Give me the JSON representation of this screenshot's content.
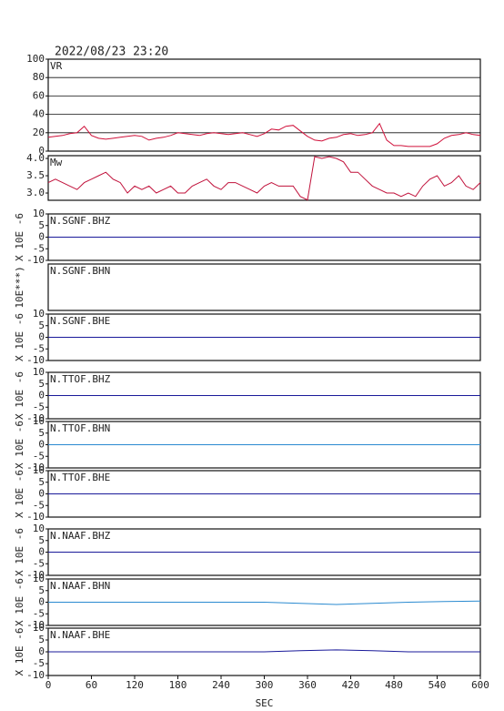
{
  "chart_data": [
    {
      "type": "line",
      "title": "2022/08/23 23:20",
      "label": "VR",
      "color": "#d0103a",
      "grid": true,
      "xlim": [
        0,
        600
      ],
      "ylim": [
        0,
        100
      ],
      "yticks": [
        0,
        20,
        40,
        60,
        80,
        100
      ],
      "x": [
        0,
        10,
        20,
        30,
        40,
        50,
        60,
        70,
        80,
        90,
        100,
        110,
        120,
        130,
        140,
        150,
        160,
        170,
        180,
        190,
        200,
        210,
        220,
        230,
        240,
        250,
        260,
        270,
        280,
        290,
        300,
        310,
        320,
        330,
        340,
        350,
        360,
        370,
        380,
        390,
        400,
        410,
        420,
        430,
        440,
        450,
        460,
        470,
        480,
        490,
        500,
        510,
        520,
        530,
        540,
        550,
        560,
        570,
        580,
        590,
        600
      ],
      "values": [
        15,
        16,
        17,
        19,
        20,
        27,
        17,
        14,
        13,
        14,
        15,
        16,
        17,
        16,
        12,
        14,
        15,
        17,
        20,
        19,
        18,
        17,
        19,
        20,
        19,
        18,
        19,
        20,
        18,
        16,
        19,
        24,
        23,
        27,
        28,
        22,
        16,
        12,
        11,
        14,
        15,
        18,
        19,
        17,
        18,
        20,
        30,
        12,
        6,
        6,
        5,
        5,
        5,
        5,
        8,
        14,
        17,
        18,
        20,
        18,
        17
      ]
    },
    {
      "type": "line",
      "label": "Mw",
      "color": "#c0103a",
      "xlim": [
        0,
        600
      ],
      "ylim": [
        2.79,
        4.08
      ],
      "yticks": [
        {
          "value": 3,
          "label": "3.0"
        },
        3.5,
        {
          "value": 4,
          "label": "4.0"
        }
      ],
      "x": [
        0,
        10,
        20,
        30,
        40,
        50,
        60,
        70,
        80,
        90,
        100,
        110,
        120,
        130,
        140,
        150,
        160,
        170,
        180,
        190,
        200,
        210,
        220,
        230,
        240,
        250,
        260,
        270,
        280,
        290,
        300,
        310,
        320,
        330,
        340,
        350,
        360,
        370,
        380,
        390,
        400,
        410,
        420,
        430,
        440,
        450,
        460,
        470,
        480,
        490,
        500,
        510,
        520,
        530,
        540,
        550,
        560,
        570,
        580,
        590,
        600
      ],
      "values": [
        3.3,
        3.4,
        3.3,
        3.2,
        3.1,
        3.3,
        3.4,
        3.5,
        3.6,
        3.4,
        3.3,
        3.0,
        3.2,
        3.1,
        3.2,
        3.0,
        3.1,
        3.2,
        3.0,
        3.0,
        3.2,
        3.3,
        3.4,
        3.2,
        3.1,
        3.3,
        3.3,
        3.2,
        3.1,
        3.0,
        3.2,
        3.3,
        3.2,
        3.2,
        3.2,
        2.9,
        2.8,
        4.05,
        4.0,
        4.05,
        4.0,
        3.9,
        3.6,
        3.6,
        3.4,
        3.2,
        3.1,
        3.0,
        3.0,
        2.9,
        3.0,
        2.9,
        3.2,
        3.4,
        3.5,
        3.2,
        3.3,
        3.5,
        3.2,
        3.1,
        3.3
      ]
    },
    {
      "type": "line",
      "label": "N.SGNF.BHZ",
      "ylabel": "X 10E -6",
      "color": "#1a1a9a",
      "xlim": [
        0,
        600
      ],
      "ylim": [
        -10,
        10
      ],
      "yticks": [
        -10,
        -5,
        0,
        5,
        10
      ],
      "x": [
        0,
        50,
        100,
        150,
        200,
        250,
        300,
        350,
        400,
        450,
        500,
        550,
        600
      ],
      "values": [
        0,
        0,
        0,
        0,
        0,
        0,
        0,
        0,
        0,
        0,
        0,
        0,
        0
      ]
    },
    {
      "type": "line",
      "label": "N.SGNF.BHN",
      "ylabel": "10E***)",
      "xlim": [
        0,
        600
      ]
    },
    {
      "type": "line",
      "label": "N.SGNF.BHE",
      "ylabel": "X 10E -6",
      "color": "#1a1a9a",
      "xlim": [
        0,
        600
      ],
      "ylim": [
        -10,
        10
      ],
      "yticks": [
        -10,
        -5,
        0,
        5,
        10
      ],
      "x": [
        0,
        50,
        100,
        150,
        200,
        250,
        300,
        350,
        400,
        450,
        500,
        550,
        600
      ],
      "values": [
        0,
        0,
        0,
        0,
        0,
        0,
        0,
        0,
        0,
        0,
        0,
        0,
        0
      ]
    },
    {
      "type": "line",
      "label": "N.TTOF.BHZ",
      "ylabel": "X 10E -6",
      "color": "#1a1a9a",
      "xlim": [
        0,
        600
      ],
      "ylim": [
        -10,
        10
      ],
      "yticks": [
        -10,
        -5,
        0,
        5,
        10
      ],
      "x": [
        0,
        50,
        100,
        150,
        200,
        250,
        300,
        350,
        400,
        450,
        500,
        550,
        600
      ],
      "values": [
        0,
        0,
        0,
        0,
        0,
        0,
        0,
        0,
        0,
        0,
        0,
        0,
        0
      ]
    },
    {
      "type": "line",
      "label": "N.TTOF.BHN",
      "ylabel": "X 10E -6",
      "color": "#2a8ad0",
      "xlim": [
        0,
        600
      ],
      "ylim": [
        -10,
        10
      ],
      "yticks": [
        -10,
        -5,
        0,
        5,
        10
      ],
      "x": [
        0,
        50,
        100,
        150,
        200,
        250,
        300,
        350,
        400,
        450,
        500,
        550,
        600
      ],
      "values": [
        0,
        0,
        0,
        0,
        0,
        0,
        0,
        0,
        0,
        0,
        0,
        0,
        0
      ]
    },
    {
      "type": "line",
      "label": "N.TTOF.BHE",
      "ylabel": "X 10E -6",
      "color": "#1a1a9a",
      "xlim": [
        0,
        600
      ],
      "ylim": [
        -10,
        10
      ],
      "yticks": [
        -10,
        -5,
        0,
        5,
        10
      ],
      "x": [
        0,
        50,
        100,
        150,
        200,
        250,
        300,
        350,
        400,
        450,
        500,
        550,
        600
      ],
      "values": [
        0,
        0,
        0,
        0,
        0,
        0,
        0,
        0,
        0,
        0,
        0,
        0,
        0
      ]
    },
    {
      "type": "line",
      "label": "N.NAAF.BHZ",
      "ylabel": "X 10E -6",
      "color": "#1a1a9a",
      "xlim": [
        0,
        600
      ],
      "ylim": [
        -10,
        10
      ],
      "yticks": [
        -10,
        -5,
        0,
        5,
        10
      ],
      "x": [
        0,
        50,
        100,
        150,
        200,
        250,
        300,
        350,
        400,
        450,
        500,
        550,
        600
      ],
      "values": [
        0,
        0,
        0,
        0,
        0,
        0,
        0,
        0,
        0,
        0,
        0,
        0,
        0
      ]
    },
    {
      "type": "line",
      "label": "N.NAAF.BHN",
      "ylabel": "X 10E -6",
      "color": "#2a8ad0",
      "xlim": [
        0,
        600
      ],
      "ylim": [
        -10,
        10
      ],
      "yticks": [
        -10,
        -5,
        0,
        5,
        10
      ],
      "x": [
        0,
        50,
        100,
        150,
        200,
        250,
        300,
        350,
        400,
        450,
        500,
        550,
        600
      ],
      "values": [
        0,
        0,
        0,
        0,
        0,
        0,
        0,
        -0.5,
        -1,
        -0.5,
        0,
        0.3,
        0.5
      ]
    },
    {
      "type": "line",
      "label": "N.NAAF.BHE",
      "ylabel": "X 10E -6",
      "color": "#1a1a9a",
      "xlim": [
        0,
        600
      ],
      "ylim": [
        -10,
        10
      ],
      "yticks": [
        -10,
        -5,
        0,
        5,
        10
      ],
      "x": [
        0,
        50,
        100,
        150,
        200,
        250,
        300,
        350,
        400,
        450,
        500,
        550,
        600
      ],
      "values": [
        0,
        0,
        0,
        0,
        0,
        0,
        0,
        0.5,
        0.8,
        0.5,
        0,
        0,
        0
      ],
      "xticks": [
        0,
        60,
        120,
        180,
        240,
        300,
        360,
        420,
        480,
        540,
        600
      ],
      "xlabel": "SEC"
    }
  ]
}
